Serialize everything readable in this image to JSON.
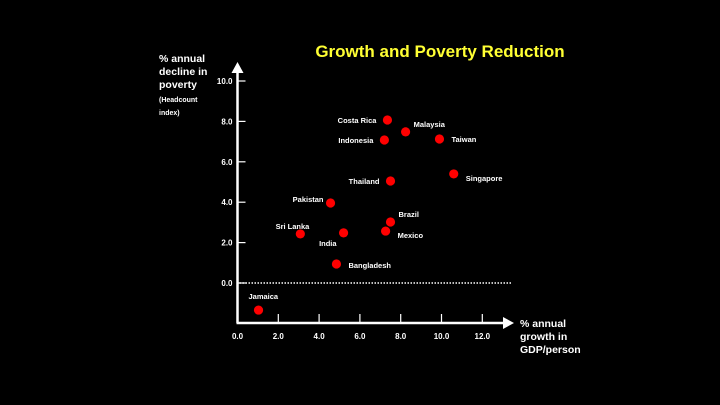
{
  "chart_data": {
    "type": "scatter",
    "title": "Growth and Poverty Reduction",
    "xlabel": [
      "% annual",
      "growth in",
      "GDP/person"
    ],
    "ylabel": [
      "% annual",
      "decline in",
      "poverty"
    ],
    "ylabel_note": [
      "(Headcount",
      "index)"
    ],
    "xlim": [
      0,
      13.5
    ],
    "ylim": [
      -2,
      11
    ],
    "x_ticks": [
      0,
      2,
      4,
      6,
      8,
      10,
      12
    ],
    "x_tick_labels": [
      "0.0",
      "2.0",
      "4.0",
      "6.0",
      "8.0",
      "10.0",
      "12.0"
    ],
    "y_ticks": [
      0,
      2,
      4,
      6,
      8,
      10
    ],
    "y_tick_labels": [
      "0.0",
      "2.0",
      "4.0",
      "6.0",
      "8.0",
      "10.0"
    ],
    "reference_line": {
      "y": 0,
      "style": "dotted"
    },
    "grid": false,
    "marker_color": "#ff0000",
    "title_color": "#ffff33",
    "points": [
      {
        "label": "Costa Rica",
        "x": 7.35,
        "y": 8.07,
        "label_side": "left"
      },
      {
        "label": "Malaysia",
        "x": 8.24,
        "y": 7.48,
        "label_side": "right-up"
      },
      {
        "label": "Indonesia",
        "x": 7.2,
        "y": 7.08,
        "label_side": "left"
      },
      {
        "label": "Taiwan",
        "x": 9.9,
        "y": 7.13,
        "label_side": "right"
      },
      {
        "label": "Singapore",
        "x": 10.6,
        "y": 5.4,
        "label_side": "right-down"
      },
      {
        "label": "Thailand",
        "x": 7.5,
        "y": 5.05,
        "label_side": "left"
      },
      {
        "label": "Pakistan",
        "x": 4.56,
        "y": 3.96,
        "label_side": "left-up"
      },
      {
        "label": "Brazil",
        "x": 7.5,
        "y": 3.02,
        "label_side": "right-up"
      },
      {
        "label": "Mexico",
        "x": 7.26,
        "y": 2.57,
        "label_side": "right-down"
      },
      {
        "label": "Sri Lanka",
        "x": 3.08,
        "y": 2.43,
        "label_side": "left-up"
      },
      {
        "label": "India",
        "x": 5.2,
        "y": 2.48,
        "label_side": "below-left"
      },
      {
        "label": "Bangladesh",
        "x": 4.85,
        "y": 0.94,
        "label_side": "right"
      },
      {
        "label": "Jamaica",
        "x": 1.03,
        "y": -1.34,
        "label_side": "above"
      }
    ]
  }
}
